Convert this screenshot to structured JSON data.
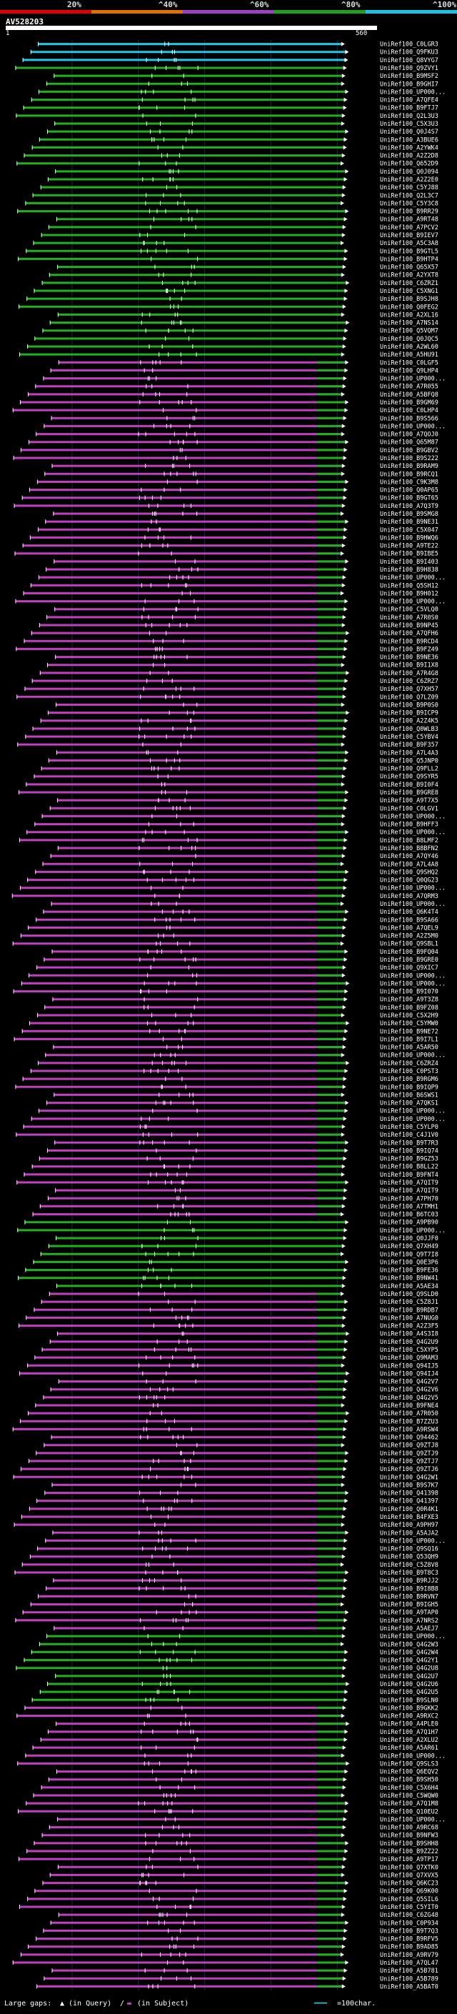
{
  "legend": {
    "labels": [
      "20%",
      "^40%",
      "^60%",
      "^80%",
      "^100%"
    ],
    "colors": [
      "#e00000",
      "#e07000",
      "#a040c0",
      "#20a020",
      "#20c0e0"
    ]
  },
  "query": {
    "id": "AV528203",
    "start_label": "1",
    "end_label": "560"
  },
  "footer": {
    "large_gaps_label": "Large gaps:",
    "in_query": "(in Query)",
    "in_subject": "(in Subject)",
    "scale_label": "=100char."
  },
  "chart_data": {
    "type": "alignment-map",
    "title": "AV528203",
    "query_length": 560,
    "color_scale": {
      "20": "#e00000",
      "40": "#e07000",
      "60": "#c040c0",
      "80": "#20b020",
      "100": "#20c8e8"
    },
    "hits": [
      {
        "id": "UniRef100_C0LGR3",
        "identity": 100
      },
      {
        "id": "UniRef100_Q9FKU3",
        "identity": 100
      },
      {
        "id": "UniRef100_Q8VYG7",
        "identity": 100
      },
      {
        "id": "UniRef100_Q9ZVY1",
        "identity": 80
      },
      {
        "id": "UniRef100_B9MSF2",
        "identity": 80
      },
      {
        "id": "UniRef100_B9GHI7",
        "identity": 80
      },
      {
        "id": "UniRef100_UP000...",
        "identity": 80
      },
      {
        "id": "UniRef100_A7QFE4",
        "identity": 80
      },
      {
        "id": "UniRef100_B9FTJ7",
        "identity": 80
      },
      {
        "id": "UniRef100_Q2L3U3",
        "identity": 80
      },
      {
        "id": "UniRef100_C5X3U3",
        "identity": 80
      },
      {
        "id": "UniRef100_Q0J4S7",
        "identity": 80
      },
      {
        "id": "UniRef100_A3BUE6",
        "identity": 80
      },
      {
        "id": "UniRef100_A2YWK4",
        "identity": 80
      },
      {
        "id": "UniRef100_A2Z2D8",
        "identity": 80
      },
      {
        "id": "UniRef100_Q652D9",
        "identity": 80
      },
      {
        "id": "UniRef100_Q0J094",
        "identity": 80
      },
      {
        "id": "UniRef100_A2Z2E0",
        "identity": 80
      },
      {
        "id": "UniRef100_C5YJ88",
        "identity": 80
      },
      {
        "id": "UniRef100_Q2L3C7",
        "identity": 80
      },
      {
        "id": "UniRef100_C5Y3C8",
        "identity": 80
      },
      {
        "id": "UniRef100_B9RR29",
        "identity": 80
      },
      {
        "id": "UniRef100_A9RT48",
        "identity": 80
      },
      {
        "id": "UniRef100_A7PCV2",
        "identity": 80
      },
      {
        "id": "UniRef100_B9IEV7",
        "identity": 80
      },
      {
        "id": "UniRef100_A5C3A8",
        "identity": 80
      },
      {
        "id": "UniRef100_B9GTL5",
        "identity": 80
      },
      {
        "id": "UniRef100_B9HTP4",
        "identity": 80
      },
      {
        "id": "UniRef100_Q65X57",
        "identity": 80
      },
      {
        "id": "UniRef100_A2YXT8",
        "identity": 80
      },
      {
        "id": "UniRef100_C6ZRZ1",
        "identity": 80
      },
      {
        "id": "UniRef100_C5XNG1",
        "identity": 80
      },
      {
        "id": "UniRef100_B9SJH8",
        "identity": 80
      },
      {
        "id": "UniRef100_Q0FEG2",
        "identity": 80
      },
      {
        "id": "UniRef100_A2XL16",
        "identity": 80
      },
      {
        "id": "UniRef100_A7NS14",
        "identity": 80
      },
      {
        "id": "UniRef100_Q5VQM7",
        "identity": 80
      },
      {
        "id": "UniRef100_Q0JQC5",
        "identity": 80
      },
      {
        "id": "UniRef100_A2WL60",
        "identity": 80
      },
      {
        "id": "UniRef100_A5HU91",
        "identity": 80
      },
      {
        "id": "UniRef100_C0LGF5",
        "identity": 60
      },
      {
        "id": "UniRef100_Q9LHP4",
        "identity": 60
      },
      {
        "id": "UniRef100_UP000...",
        "identity": 60
      },
      {
        "id": "UniRef100_A7R055",
        "identity": 60
      },
      {
        "id": "UniRef100_A5BFQ8",
        "identity": 60
      },
      {
        "id": "UniRef100_B9GM69",
        "identity": 60
      },
      {
        "id": "UniRef100_C0LHP4",
        "identity": 60
      },
      {
        "id": "UniRef100_B9S566",
        "identity": 60
      },
      {
        "id": "UniRef100_UP000...",
        "identity": 60
      },
      {
        "id": "UniRef100_A7QOJ0",
        "identity": 60
      },
      {
        "id": "UniRef100_Q65M87",
        "identity": 60
      },
      {
        "id": "UniRef100_B9GBV2",
        "identity": 60
      },
      {
        "id": "UniRef100_B9S222",
        "identity": 60
      },
      {
        "id": "UniRef100_B9RAM9",
        "identity": 60
      },
      {
        "id": "UniRef100_B9RCQ1",
        "identity": 60
      },
      {
        "id": "UniRef100_C9K3M8",
        "identity": 60
      },
      {
        "id": "UniRef100_Q0AP65",
        "identity": 60
      },
      {
        "id": "UniRef100_B9GT65",
        "identity": 60
      },
      {
        "id": "UniRef100_A7Q3T9",
        "identity": 60
      },
      {
        "id": "UniRef100_B9SMG8",
        "identity": 60
      },
      {
        "id": "UniRef100_B9NE31",
        "identity": 60
      },
      {
        "id": "UniRef100_C5X047",
        "identity": 60
      },
      {
        "id": "UniRef100_B9HWQ6",
        "identity": 60
      },
      {
        "id": "UniRef100_A9TE22",
        "identity": 60
      },
      {
        "id": "UniRef100_B9IBE5",
        "identity": 60
      },
      {
        "id": "UniRef100_B9I403",
        "identity": 60
      },
      {
        "id": "UniRef100_B9H838",
        "identity": 60
      },
      {
        "id": "UniRef100_UP000...",
        "identity": 60
      },
      {
        "id": "UniRef100_Q5SH12",
        "identity": 60
      },
      {
        "id": "UniRef100_B9H012",
        "identity": 60
      },
      {
        "id": "UniRef100_UP000...",
        "identity": 60
      },
      {
        "id": "UniRef100_C5VLQ0",
        "identity": 60
      },
      {
        "id": "UniRef100_A7R0S0",
        "identity": 60
      },
      {
        "id": "UniRef100_B9NP45",
        "identity": 60
      },
      {
        "id": "UniRef100_A7QFH6",
        "identity": 60
      },
      {
        "id": "UniRef100_B9RCD4",
        "identity": 60
      },
      {
        "id": "UniRef100_B9FZ49",
        "identity": 60
      },
      {
        "id": "UniRef100_B9NE36",
        "identity": 60
      },
      {
        "id": "UniRef100_B9I1X8",
        "identity": 60
      },
      {
        "id": "UniRef100_A7R4G8",
        "identity": 60
      },
      {
        "id": "UniRef100_C6ZRZ7",
        "identity": 60
      },
      {
        "id": "UniRef100_Q7XH57",
        "identity": 60
      },
      {
        "id": "UniRef100_Q7LZ09",
        "identity": 60
      },
      {
        "id": "UniRef100_B9P0S0",
        "identity": 60
      },
      {
        "id": "UniRef100_B9ICP9",
        "identity": 60
      },
      {
        "id": "UniRef100_A2Z4K5",
        "identity": 60
      },
      {
        "id": "UniRef100_Q0WLB3",
        "identity": 60
      },
      {
        "id": "UniRef100_C5YBV4",
        "identity": 60
      },
      {
        "id": "UniRef100_B9F357",
        "identity": 60
      },
      {
        "id": "UniRef100_A7L4A3",
        "identity": 60
      },
      {
        "id": "UniRef100_Q5JNP0",
        "identity": 60
      },
      {
        "id": "UniRef100_Q9FLL2",
        "identity": 60
      },
      {
        "id": "UniRef100_Q9SYR5",
        "identity": 60
      },
      {
        "id": "UniRef100_B9I0F4",
        "identity": 60
      },
      {
        "id": "UniRef100_B9GRE8",
        "identity": 60
      },
      {
        "id": "UniRef100_A9T7X5",
        "identity": 60
      },
      {
        "id": "UniRef100_C0LGV1",
        "identity": 60
      },
      {
        "id": "UniRef100_UP000...",
        "identity": 60
      },
      {
        "id": "UniRef100_B9HFF3",
        "identity": 60
      },
      {
        "id": "UniRef100_UP000...",
        "identity": 60
      },
      {
        "id": "UniRef100_B8LMF2",
        "identity": 60
      },
      {
        "id": "UniRef100_B8BFN2",
        "identity": 60
      },
      {
        "id": "UniRef100_A7QY46",
        "identity": 60
      },
      {
        "id": "UniRef100_A7L4A8",
        "identity": 60
      },
      {
        "id": "UniRef100_Q9SHQ2",
        "identity": 60
      },
      {
        "id": "UniRef100_Q0QG23",
        "identity": 60
      },
      {
        "id": "UniRef100_UP000...",
        "identity": 60
      },
      {
        "id": "UniRef100_A7QRM3",
        "identity": 60
      },
      {
        "id": "UniRef100_UP000...",
        "identity": 60
      },
      {
        "id": "UniRef100_Q6K4T4",
        "identity": 60
      },
      {
        "id": "UniRef100_B9SA66",
        "identity": 60
      },
      {
        "id": "UniRef100_A7QEL9",
        "identity": 60
      },
      {
        "id": "UniRef100_A2Z5M0",
        "identity": 60
      },
      {
        "id": "UniRef100_Q9SBL1",
        "identity": 60
      },
      {
        "id": "UniRef100_B9FQ04",
        "identity": 60
      },
      {
        "id": "UniRef100_B9GRE0",
        "identity": 60
      },
      {
        "id": "UniRef100_Q9XIC7",
        "identity": 60
      },
      {
        "id": "UniRef100_UP000...",
        "identity": 60
      },
      {
        "id": "UniRef100_UP000...",
        "identity": 60
      },
      {
        "id": "UniRef100_B9I070",
        "identity": 60
      },
      {
        "id": "UniRef100_A9T3Z8",
        "identity": 60
      },
      {
        "id": "UniRef100_B9FZ08",
        "identity": 60
      },
      {
        "id": "UniRef100_C5X2H9",
        "identity": 60
      },
      {
        "id": "UniRef100_C5YMW0",
        "identity": 60
      },
      {
        "id": "UniRef100_B9NE72",
        "identity": 60
      },
      {
        "id": "UniRef100_B9I7L1",
        "identity": 60
      },
      {
        "id": "UniRef100_A5AR50",
        "identity": 60
      },
      {
        "id": "UniRef100_UP000...",
        "identity": 60
      },
      {
        "id": "UniRef100_C6ZRZ4",
        "identity": 60
      },
      {
        "id": "UniRef100_C0PST3",
        "identity": 60
      },
      {
        "id": "UniRef100_B9RGM6",
        "identity": 60
      },
      {
        "id": "UniRef100_B9IQP9",
        "identity": 60
      },
      {
        "id": "UniRef100_B6SWS1",
        "identity": 60
      },
      {
        "id": "UniRef100_A7QKS1",
        "identity": 60
      },
      {
        "id": "UniRef100_UP000...",
        "identity": 60
      },
      {
        "id": "UniRef100_UP000...",
        "identity": 60
      },
      {
        "id": "UniRef100_C5YLP0",
        "identity": 60
      },
      {
        "id": "UniRef100_C4J1V0",
        "identity": 60
      },
      {
        "id": "UniRef100_B9T7R3",
        "identity": 60
      },
      {
        "id": "UniRef100_B9IQ74",
        "identity": 60
      },
      {
        "id": "UniRef100_B9GZ53",
        "identity": 60
      },
      {
        "id": "UniRef100_B8LL22",
        "identity": 60
      },
      {
        "id": "UniRef100_B9FNT4",
        "identity": 60
      },
      {
        "id": "UniRef100_A7QIT9",
        "identity": 60
      },
      {
        "id": "UniRef100_A7QIT9",
        "identity": 60
      },
      {
        "id": "UniRef100_A7PH70",
        "identity": 60
      },
      {
        "id": "UniRef100_A7TMH1",
        "identity": 60
      },
      {
        "id": "UniRef100_B6TC03",
        "identity": 60
      },
      {
        "id": "UniRef100_A9PB90",
        "identity": 80
      },
      {
        "id": "UniRef100_UP000...",
        "identity": 80
      },
      {
        "id": "UniRef100_Q0JJF0",
        "identity": 80
      },
      {
        "id": "UniRef100_Q7XH49",
        "identity": 80
      },
      {
        "id": "UniRef100_Q9T7I8",
        "identity": 80
      },
      {
        "id": "UniRef100_Q0E3P6",
        "identity": 80
      },
      {
        "id": "UniRef100_B9FE36",
        "identity": 80
      },
      {
        "id": "UniRef100_B9NW41",
        "identity": 80
      },
      {
        "id": "UniRef100_A5AE34",
        "identity": 80
      },
      {
        "id": "UniRef100_Q9SLD0",
        "identity": 60
      },
      {
        "id": "UniRef100_C5Z8J1",
        "identity": 60
      },
      {
        "id": "UniRef100_B9RDB7",
        "identity": 60
      },
      {
        "id": "UniRef100_A7NUG0",
        "identity": 60
      },
      {
        "id": "UniRef100_A2Z3F5",
        "identity": 60
      },
      {
        "id": "UniRef100_A4S3I8",
        "identity": 60
      },
      {
        "id": "UniRef100_Q4G2U9",
        "identity": 60
      },
      {
        "id": "UniRef100_C5XYP5",
        "identity": 60
      },
      {
        "id": "UniRef100_Q9MAM3",
        "identity": 60
      },
      {
        "id": "UniRef100_Q94IJ5",
        "identity": 60
      },
      {
        "id": "UniRef100_Q94IJ4",
        "identity": 60
      },
      {
        "id": "UniRef100_Q4G2V7",
        "identity": 60
      },
      {
        "id": "UniRef100_Q4G2V6",
        "identity": 60
      },
      {
        "id": "UniRef100_Q4G2V5",
        "identity": 60
      },
      {
        "id": "UniRef100_B9FNE4",
        "identity": 60
      },
      {
        "id": "UniRef100_A7R050",
        "identity": 60
      },
      {
        "id": "UniRef100_B7ZZU3",
        "identity": 60
      },
      {
        "id": "UniRef100_A9RSW4",
        "identity": 60
      },
      {
        "id": "UniRef100_Q94462",
        "identity": 60
      },
      {
        "id": "UniRef100_Q9ZTJ8",
        "identity": 60
      },
      {
        "id": "UniRef100_Q9ZTJ9",
        "identity": 60
      },
      {
        "id": "UniRef100_Q9ZTJ7",
        "identity": 60
      },
      {
        "id": "UniRef100_Q9ZTJ6",
        "identity": 60
      },
      {
        "id": "UniRef100_Q4G2W1",
        "identity": 60
      },
      {
        "id": "UniRef100_B9S7K7",
        "identity": 60
      },
      {
        "id": "UniRef100_Q41398",
        "identity": 60
      },
      {
        "id": "UniRef100_Q41397",
        "identity": 60
      },
      {
        "id": "UniRef100_Q0R4K1",
        "identity": 60
      },
      {
        "id": "UniRef100_B4FXE3",
        "identity": 60
      },
      {
        "id": "UniRef100_A9PH97",
        "identity": 60
      },
      {
        "id": "UniRef100_A5AJA2",
        "identity": 60
      },
      {
        "id": "UniRef100_UP000...",
        "identity": 60
      },
      {
        "id": "UniRef100_Q9SQ16",
        "identity": 60
      },
      {
        "id": "UniRef100_Q53QH9",
        "identity": 60
      },
      {
        "id": "UniRef100_C5Z8V8",
        "identity": 60
      },
      {
        "id": "UniRef100_B9T8C3",
        "identity": 60
      },
      {
        "id": "UniRef100_B9RJJ2",
        "identity": 60
      },
      {
        "id": "UniRef100_B9I8B8",
        "identity": 60
      },
      {
        "id": "UniRef100_B9RVN7",
        "identity": 60
      },
      {
        "id": "UniRef100_B9IGH5",
        "identity": 60
      },
      {
        "id": "UniRef100_A9TAP0",
        "identity": 60
      },
      {
        "id": "UniRef100_A7NRS2",
        "identity": 60
      },
      {
        "id": "UniRef100_A5AEJ7",
        "identity": 60
      },
      {
        "id": "UniRef100_UP000...",
        "identity": 80
      },
      {
        "id": "UniRef100_Q4G2W3",
        "identity": 80
      },
      {
        "id": "UniRef100_Q4G2W4",
        "identity": 80
      },
      {
        "id": "UniRef100_Q4G2Y1",
        "identity": 80
      },
      {
        "id": "UniRef100_Q4G2U8",
        "identity": 80
      },
      {
        "id": "UniRef100_Q4G2U7",
        "identity": 80
      },
      {
        "id": "UniRef100_Q4G2U6",
        "identity": 80
      },
      {
        "id": "UniRef100_Q4G2U5",
        "identity": 80
      },
      {
        "id": "UniRef100_B9SLN0",
        "identity": 80
      },
      {
        "id": "UniRef100_B9GKK2",
        "identity": 60
      },
      {
        "id": "UniRef100_A9RXC2",
        "identity": 60
      },
      {
        "id": "UniRef100_A4PLE0",
        "identity": 60
      },
      {
        "id": "UniRef100_A7Q1H7",
        "identity": 60
      },
      {
        "id": "UniRef100_A2XLU2",
        "identity": 60
      },
      {
        "id": "UniRef100_A5AR61",
        "identity": 60
      },
      {
        "id": "UniRef100_UP000...",
        "identity": 60
      },
      {
        "id": "UniRef100_Q9SLS3",
        "identity": 60
      },
      {
        "id": "UniRef100_Q6EQV2",
        "identity": 60
      },
      {
        "id": "UniRef100_B9SH50",
        "identity": 60
      },
      {
        "id": "UniRef100_C5X6H4",
        "identity": 60
      },
      {
        "id": "UniRef100_C5WQW0",
        "identity": 60
      },
      {
        "id": "UniRef100_A7Q1M8",
        "identity": 60
      },
      {
        "id": "UniRef100_Q10EU2",
        "identity": 60
      },
      {
        "id": "UniRef100_UP000...",
        "identity": 60
      },
      {
        "id": "UniRef100_A9RC68",
        "identity": 60
      },
      {
        "id": "UniRef100_B9NFW3",
        "identity": 60
      },
      {
        "id": "UniRef100_B9SHH8",
        "identity": 60
      },
      {
        "id": "UniRef100_B9ZZ22",
        "identity": 60
      },
      {
        "id": "UniRef100_A9TP17",
        "identity": 60
      },
      {
        "id": "UniRef100_Q7XTK0",
        "identity": 60
      },
      {
        "id": "UniRef100_Q7XVX5",
        "identity": 60
      },
      {
        "id": "UniRef100_Q6KC23",
        "identity": 60
      },
      {
        "id": "UniRef100_Q69K00",
        "identity": 60
      },
      {
        "id": "UniRef100_Q5SIL6",
        "identity": 60
      },
      {
        "id": "UniRef100_C5YIT0",
        "identity": 60
      },
      {
        "id": "UniRef100_C6ZG48",
        "identity": 60
      },
      {
        "id": "UniRef100_C0P934",
        "identity": 60
      },
      {
        "id": "UniRef100_B9T7Q3",
        "identity": 60
      },
      {
        "id": "UniRef100_B9RFV5",
        "identity": 60
      },
      {
        "id": "UniRef100_B9AD85",
        "identity": 60
      },
      {
        "id": "UniRef100_A9RV79",
        "identity": 60
      },
      {
        "id": "UniRef100_A7QL47",
        "identity": 60
      },
      {
        "id": "UniRef100_A5B781",
        "identity": 60
      },
      {
        "id": "UniRef100_A5B789",
        "identity": 60
      },
      {
        "id": "UniRef100_A5BAT0",
        "identity": 60
      }
    ]
  }
}
